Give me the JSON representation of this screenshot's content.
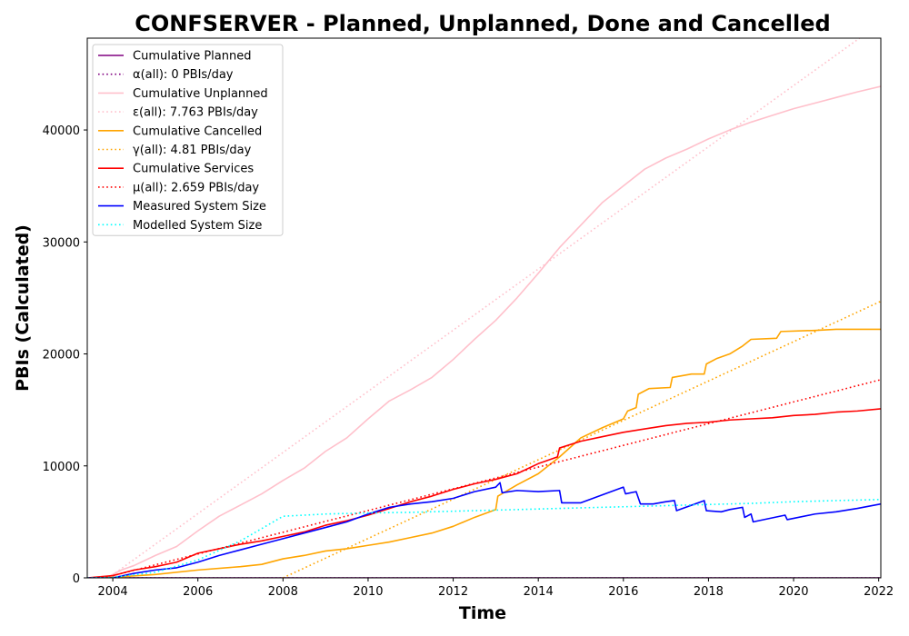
{
  "chart_data": {
    "type": "line",
    "title": "CONFSERVER - Planned, Unplanned, Done  and Cancelled",
    "xlabel": "Time",
    "ylabel": "PBIs (Calculated)",
    "xlim": [
      2003.4,
      2022.05
    ],
    "ylim": [
      0,
      48200
    ],
    "x_ticks": [
      2004,
      2006,
      2008,
      2010,
      2012,
      2014,
      2016,
      2018,
      2020,
      2022
    ],
    "x_tick_labels": [
      "2004",
      "2006",
      "2008",
      "2010",
      "2012",
      "2014",
      "2016",
      "2018",
      "2020",
      "2022"
    ],
    "y_ticks": [
      0,
      10000,
      20000,
      30000,
      40000
    ],
    "y_tick_labels": [
      "0",
      "10000",
      "20000",
      "30000",
      "40000"
    ],
    "grid": false,
    "legend_position": "top-left",
    "series": [
      {
        "name": "Cumulative Planned",
        "color": "#800080",
        "style": "solid",
        "points": [
          [
            2003.4,
            0
          ],
          [
            2022.05,
            0
          ]
        ]
      },
      {
        "name": "α(all): 0 PBIs/day",
        "color": "#800080",
        "style": "dotted",
        "points": [
          [
            2003.4,
            0
          ],
          [
            2022.05,
            0
          ]
        ]
      },
      {
        "name": "Cumulative Unplanned",
        "color": "#ffc0cb",
        "style": "solid",
        "points": [
          [
            2003.4,
            0
          ],
          [
            2003.9,
            100
          ],
          [
            2004.2,
            700
          ],
          [
            2004.5,
            1100
          ],
          [
            2005.0,
            2000
          ],
          [
            2005.5,
            2800
          ],
          [
            2006.0,
            4200
          ],
          [
            2006.5,
            5500
          ],
          [
            2007.0,
            6500
          ],
          [
            2007.5,
            7500
          ],
          [
            2008.0,
            8700
          ],
          [
            2008.5,
            9800
          ],
          [
            2009.0,
            11300
          ],
          [
            2009.5,
            12500
          ],
          [
            2010.0,
            14200
          ],
          [
            2010.5,
            15800
          ],
          [
            2011.0,
            16800
          ],
          [
            2011.5,
            17900
          ],
          [
            2012.0,
            19500
          ],
          [
            2012.5,
            21300
          ],
          [
            2013.0,
            23000
          ],
          [
            2013.5,
            25000
          ],
          [
            2014.0,
            27200
          ],
          [
            2014.5,
            29500
          ],
          [
            2015.0,
            31500
          ],
          [
            2015.5,
            33500
          ],
          [
            2016.0,
            35000
          ],
          [
            2016.5,
            36500
          ],
          [
            2017.0,
            37500
          ],
          [
            2017.5,
            38300
          ],
          [
            2018.0,
            39200
          ],
          [
            2018.5,
            40000
          ],
          [
            2019.0,
            40700
          ],
          [
            2019.5,
            41300
          ],
          [
            2020.0,
            41900
          ],
          [
            2020.5,
            42400
          ],
          [
            2021.0,
            42900
          ],
          [
            2021.5,
            43400
          ],
          [
            2022.05,
            43900
          ]
        ]
      },
      {
        "name": "ε(all): 7.763 PBIs/day",
        "color": "#ffc0cb",
        "style": "dotted",
        "points": [
          [
            2003.9,
            0
          ],
          [
            2021.55,
            48200
          ]
        ]
      },
      {
        "name": "Cumulative Cancelled",
        "color": "#ffa500",
        "style": "solid",
        "points": [
          [
            2003.4,
            0
          ],
          [
            2004.0,
            50
          ],
          [
            2005.0,
            300
          ],
          [
            2006.0,
            700
          ],
          [
            2007.0,
            1000
          ],
          [
            2007.5,
            1200
          ],
          [
            2008.0,
            1700
          ],
          [
            2008.5,
            2000
          ],
          [
            2009.0,
            2400
          ],
          [
            2009.5,
            2600
          ],
          [
            2010.0,
            2900
          ],
          [
            2010.5,
            3200
          ],
          [
            2011.0,
            3600
          ],
          [
            2011.5,
            4000
          ],
          [
            2012.0,
            4600
          ],
          [
            2012.5,
            5400
          ],
          [
            2013.0,
            6100
          ],
          [
            2013.05,
            7300
          ],
          [
            2013.5,
            8300
          ],
          [
            2014.0,
            9300
          ],
          [
            2014.5,
            10800
          ],
          [
            2015.0,
            12500
          ],
          [
            2015.5,
            13400
          ],
          [
            2016.0,
            14200
          ],
          [
            2016.1,
            14900
          ],
          [
            2016.3,
            15200
          ],
          [
            2016.35,
            16400
          ],
          [
            2016.6,
            16900
          ],
          [
            2017.1,
            17000
          ],
          [
            2017.15,
            17900
          ],
          [
            2017.6,
            18200
          ],
          [
            2017.9,
            18200
          ],
          [
            2017.95,
            19100
          ],
          [
            2018.2,
            19600
          ],
          [
            2018.5,
            20000
          ],
          [
            2018.8,
            20700
          ],
          [
            2019.0,
            21300
          ],
          [
            2019.6,
            21400
          ],
          [
            2019.7,
            22000
          ],
          [
            2020.5,
            22100
          ],
          [
            2021.0,
            22200
          ],
          [
            2022.05,
            22200
          ]
        ]
      },
      {
        "name": "γ(all): 4.81 PBIs/day",
        "color": "#ffa500",
        "style": "dotted",
        "points": [
          [
            2008.0,
            0
          ],
          [
            2022.05,
            24700
          ]
        ]
      },
      {
        "name": "Cumulative Services",
        "color": "#ff0000",
        "style": "solid",
        "points": [
          [
            2003.4,
            0
          ],
          [
            2004.0,
            200
          ],
          [
            2004.5,
            700
          ],
          [
            2005.0,
            1000
          ],
          [
            2005.5,
            1400
          ],
          [
            2006.0,
            2200
          ],
          [
            2006.5,
            2600
          ],
          [
            2007.0,
            3000
          ],
          [
            2007.5,
            3300
          ],
          [
            2008.0,
            3700
          ],
          [
            2008.5,
            4100
          ],
          [
            2009.0,
            4700
          ],
          [
            2009.5,
            5100
          ],
          [
            2010.0,
            5600
          ],
          [
            2010.5,
            6200
          ],
          [
            2011.0,
            6800
          ],
          [
            2011.5,
            7300
          ],
          [
            2012.0,
            7900
          ],
          [
            2012.5,
            8400
          ],
          [
            2013.0,
            8800
          ],
          [
            2013.5,
            9300
          ],
          [
            2014.0,
            10200
          ],
          [
            2014.45,
            10800
          ],
          [
            2014.5,
            11600
          ],
          [
            2015.0,
            12200
          ],
          [
            2015.5,
            12600
          ],
          [
            2016.0,
            13000
          ],
          [
            2016.5,
            13300
          ],
          [
            2017.0,
            13600
          ],
          [
            2017.5,
            13800
          ],
          [
            2018.0,
            13900
          ],
          [
            2018.5,
            14100
          ],
          [
            2019.0,
            14200
          ],
          [
            2019.5,
            14300
          ],
          [
            2020.0,
            14500
          ],
          [
            2020.5,
            14600
          ],
          [
            2021.0,
            14800
          ],
          [
            2021.5,
            14900
          ],
          [
            2022.05,
            15100
          ]
        ]
      },
      {
        "name": "μ(all): 2.659 PBIs/day",
        "color": "#ff0000",
        "style": "dotted",
        "points": [
          [
            2003.8,
            0
          ],
          [
            2022.05,
            17700
          ]
        ]
      },
      {
        "name": "Measured System Size",
        "color": "#0000ff",
        "style": "solid",
        "points": [
          [
            2003.4,
            0
          ],
          [
            2004.0,
            0
          ],
          [
            2004.5,
            400
          ],
          [
            2005.0,
            700
          ],
          [
            2005.5,
            900
          ],
          [
            2006.0,
            1400
          ],
          [
            2006.5,
            2000
          ],
          [
            2007.0,
            2500
          ],
          [
            2007.5,
            3000
          ],
          [
            2008.0,
            3500
          ],
          [
            2008.5,
            4000
          ],
          [
            2009.0,
            4500
          ],
          [
            2009.5,
            5000
          ],
          [
            2010.0,
            5700
          ],
          [
            2010.5,
            6300
          ],
          [
            2011.0,
            6600
          ],
          [
            2011.5,
            6800
          ],
          [
            2012.0,
            7100
          ],
          [
            2012.5,
            7700
          ],
          [
            2013.0,
            8100
          ],
          [
            2013.1,
            8500
          ],
          [
            2013.15,
            7600
          ],
          [
            2013.5,
            7800
          ],
          [
            2014.0,
            7700
          ],
          [
            2014.5,
            7800
          ],
          [
            2014.55,
            6700
          ],
          [
            2015.0,
            6700
          ],
          [
            2015.5,
            7400
          ],
          [
            2016.0,
            8100
          ],
          [
            2016.05,
            7500
          ],
          [
            2016.3,
            7700
          ],
          [
            2016.4,
            6600
          ],
          [
            2016.7,
            6600
          ],
          [
            2017.0,
            6800
          ],
          [
            2017.2,
            6900
          ],
          [
            2017.25,
            6000
          ],
          [
            2017.9,
            6900
          ],
          [
            2017.95,
            6000
          ],
          [
            2018.3,
            5900
          ],
          [
            2018.5,
            6100
          ],
          [
            2018.8,
            6300
          ],
          [
            2018.85,
            5400
          ],
          [
            2019.0,
            5700
          ],
          [
            2019.05,
            5000
          ],
          [
            2019.8,
            5600
          ],
          [
            2019.85,
            5200
          ],
          [
            2020.5,
            5700
          ],
          [
            2021.0,
            5900
          ],
          [
            2021.5,
            6200
          ],
          [
            2022.05,
            6600
          ]
        ]
      },
      {
        "name": "Modelled System Size",
        "color": "#00ffff",
        "style": "dotted",
        "points": [
          [
            2003.4,
            0
          ],
          [
            2004.0,
            50
          ],
          [
            2005.0,
            500
          ],
          [
            2006.0,
            1600
          ],
          [
            2007.0,
            3300
          ],
          [
            2008.0,
            5500
          ],
          [
            2008.5,
            5600
          ],
          [
            2009.0,
            5700
          ],
          [
            2010.0,
            5800
          ],
          [
            2011.0,
            5850
          ],
          [
            2012.0,
            5950
          ],
          [
            2013.0,
            6050
          ],
          [
            2014.0,
            6150
          ],
          [
            2015.0,
            6250
          ],
          [
            2016.0,
            6350
          ],
          [
            2017.0,
            6450
          ],
          [
            2018.0,
            6550
          ],
          [
            2019.0,
            6650
          ],
          [
            2020.0,
            6800
          ],
          [
            2021.0,
            6900
          ],
          [
            2022.05,
            7000
          ]
        ]
      }
    ]
  }
}
